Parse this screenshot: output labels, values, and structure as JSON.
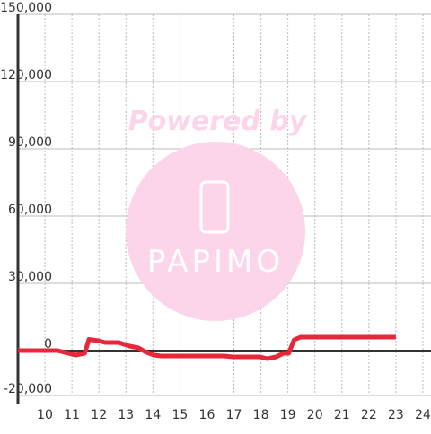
{
  "chart_data": {
    "type": "line",
    "annotations": [
      "Powered by",
      "PAPIMO"
    ],
    "x": [
      9,
      10.47,
      10.8,
      11.13,
      11.47,
      11.63,
      11.97,
      12.23,
      12.73,
      13.13,
      13.47,
      13.7,
      14.03,
      14.3,
      16.63,
      16.97,
      17.97,
      18.23,
      18.57,
      18.83,
      19.03,
      19.23,
      19.47,
      23
    ],
    "series": [
      {
        "color": "#e8283a",
        "values": [
          0,
          0,
          -1000,
          -2000,
          -1200,
          5000,
          4400,
          3600,
          3600,
          2000,
          1200,
          -400,
          -2000,
          -2400,
          -2400,
          -2800,
          -2800,
          -3600,
          -2800,
          -1200,
          -1200,
          4800,
          6000,
          6000
        ]
      }
    ],
    "xlim": [
      9,
      24.3
    ],
    "xticks": [
      10,
      11,
      12,
      13,
      14,
      15,
      16,
      17,
      18,
      19,
      20,
      21,
      22,
      23,
      24
    ],
    "ylim": [
      -20000,
      150000
    ],
    "yticks": [
      {
        "value": -20000,
        "label": "-20,000"
      },
      0,
      {
        "value": 30000,
        "label": "30,000"
      },
      {
        "value": 60000,
        "label": "60,000"
      },
      {
        "value": 90000,
        "label": "90,000"
      },
      {
        "value": 120000,
        "label": "120,000"
      },
      {
        "value": 150000,
        "label": "150,000"
      }
    ],
    "grid": true
  }
}
